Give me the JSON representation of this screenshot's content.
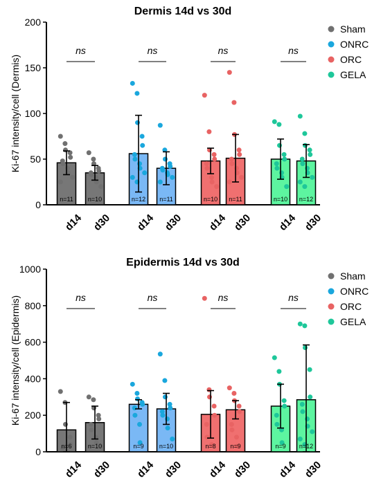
{
  "legend": [
    "Sham",
    "ONRC",
    "ORC",
    "GELA"
  ],
  "colors": {
    "bar": [
      "#777777",
      "#7ab8f5",
      "#f07070",
      "#5df5a0"
    ],
    "dot": [
      "#707070",
      "#1aa7dd",
      "#e86363",
      "#1ec79a"
    ]
  },
  "chart_data": [
    {
      "type": "bar",
      "title": "Dermis 14d vs 30d",
      "ylabel": "Ki-67 intensity/cell (Dermis)",
      "ylim": [
        0,
        200
      ],
      "yticks": [
        0,
        50,
        100,
        150,
        200
      ],
      "categories": [
        "d14",
        "d30",
        "d14",
        "d30",
        "d14",
        "d30",
        "d14",
        "d30"
      ],
      "groups": [
        "Sham",
        "ONRC",
        "ORC",
        "GELA"
      ],
      "means": [
        46,
        35,
        56,
        40,
        48,
        51,
        50,
        48
      ],
      "sd": [
        13,
        8,
        42,
        18,
        14,
        26,
        22,
        18
      ],
      "n_labels": [
        "n=11",
        "n=10",
        "n=12",
        "n=11",
        "n=10",
        "n=11",
        "n=10",
        "n=12"
      ],
      "points": [
        [
          75,
          67,
          60,
          57,
          52,
          48,
          45,
          40,
          35,
          30,
          25
        ],
        [
          57,
          50,
          45,
          40,
          37,
          35,
          33,
          30,
          25,
          20
        ],
        [
          133,
          122,
          90,
          75,
          65,
          55,
          50,
          45,
          40,
          35,
          30,
          25
        ],
        [
          87,
          60,
          50,
          45,
          42,
          40,
          38,
          35,
          33,
          30,
          25
        ],
        [
          120,
          80,
          60,
          55,
          50,
          45,
          40,
          30,
          25,
          20
        ],
        [
          145,
          112,
          77,
          60,
          55,
          50,
          45,
          40,
          35,
          30,
          25
        ],
        [
          91,
          88,
          65,
          55,
          50,
          45,
          40,
          35,
          30,
          20
        ],
        [
          97,
          78,
          65,
          60,
          55,
          50,
          45,
          40,
          35,
          30,
          25,
          20
        ]
      ],
      "annotations": [
        "ns",
        "ns",
        "ns",
        "ns"
      ]
    },
    {
      "type": "bar",
      "title": "Epidermis 14d vs 30d",
      "ylabel": "Ki-67 intensity/cell (Epidermis)",
      "ylim": [
        0,
        1000
      ],
      "yticks": [
        0,
        200,
        400,
        600,
        800,
        1000
      ],
      "categories": [
        "d14",
        "d30",
        "d14",
        "d30",
        "d14",
        "d30",
        "d14",
        "d30"
      ],
      "groups": [
        "Sham",
        "ONRC",
        "ORC",
        "GELA"
      ],
      "means": [
        120,
        160,
        260,
        235,
        205,
        230,
        250,
        285
      ],
      "sd": [
        150,
        90,
        25,
        85,
        130,
        50,
        120,
        300
      ],
      "n_labels": [
        "n=6",
        "n=10",
        "n=9",
        "n=10",
        "n=8",
        "n=9",
        "n=9",
        "n=12"
      ],
      "points": [
        [
          330,
          270,
          150,
          80,
          40,
          20
        ],
        [
          300,
          285,
          240,
          200,
          180,
          150,
          120,
          80,
          50,
          30
        ],
        [
          370,
          320,
          290,
          270,
          260,
          240,
          200,
          150,
          50
        ],
        [
          535,
          390,
          300,
          260,
          240,
          220,
          200,
          180,
          130,
          70
        ],
        [
          840,
          340,
          300,
          250,
          200,
          150,
          80,
          40
        ],
        [
          350,
          320,
          280,
          250,
          220,
          150,
          120,
          80,
          30
        ],
        [
          515,
          440,
          370,
          280,
          250,
          200,
          150,
          120,
          50
        ],
        [
          700,
          690,
          570,
          450,
          300,
          260,
          220,
          180,
          140,
          110,
          70,
          40
        ]
      ],
      "annotations": [
        "ns",
        "ns",
        "ns",
        "ns"
      ]
    }
  ]
}
